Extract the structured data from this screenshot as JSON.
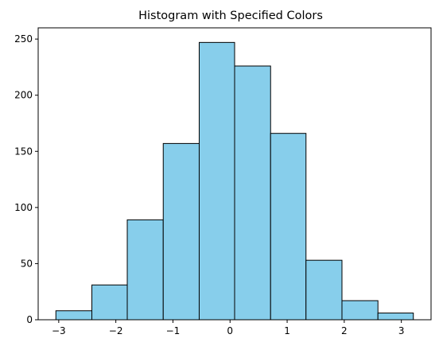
{
  "chart_data": {
    "type": "bar",
    "title": "Histogram with Specified Colors",
    "xlabel": "",
    "ylabel": "",
    "bin_edges": [
      -3.05,
      -2.42,
      -1.8,
      -1.17,
      -0.54,
      0.08,
      0.71,
      1.33,
      1.96,
      2.59,
      3.21
    ],
    "values": [
      8,
      31,
      89,
      157,
      247,
      226,
      166,
      53,
      17,
      6
    ],
    "xlim": [
      -3.36,
      3.52
    ],
    "ylim": [
      0,
      260
    ],
    "xticks": [
      -3,
      -2,
      -1,
      0,
      1,
      2,
      3
    ],
    "xtick_labels": [
      "−3",
      "−2",
      "−1",
      "0",
      "1",
      "2",
      "3"
    ],
    "yticks": [
      0,
      50,
      100,
      150,
      200,
      250
    ],
    "ytick_labels": [
      "0",
      "50",
      "100",
      "150",
      "200",
      "250"
    ],
    "grid": false,
    "bar_color": "#87CEEB",
    "edge_color": "#000000"
  }
}
